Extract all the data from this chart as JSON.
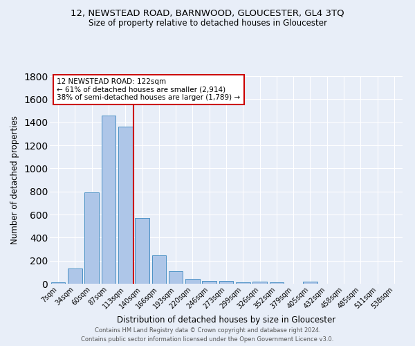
{
  "title": "12, NEWSTEAD ROAD, BARNWOOD, GLOUCESTER, GL4 3TQ",
  "subtitle": "Size of property relative to detached houses in Gloucester",
  "xlabel": "Distribution of detached houses by size in Gloucester",
  "ylabel": "Number of detached properties",
  "categories": [
    "7sqm",
    "34sqm",
    "60sqm",
    "87sqm",
    "113sqm",
    "140sqm",
    "166sqm",
    "193sqm",
    "220sqm",
    "246sqm",
    "273sqm",
    "299sqm",
    "326sqm",
    "352sqm",
    "379sqm",
    "405sqm",
    "432sqm",
    "458sqm",
    "485sqm",
    "511sqm",
    "538sqm"
  ],
  "values": [
    10,
    135,
    790,
    1460,
    1360,
    570,
    248,
    108,
    40,
    27,
    22,
    14,
    18,
    10,
    0,
    20,
    0,
    0,
    0,
    0,
    0
  ],
  "bar_color": "#aec6e8",
  "bar_edge_color": "#4a90c4",
  "background_color": "#e8eef8",
  "grid_color": "#ffffff",
  "red_line_x": 4.5,
  "annotation_text": "12 NEWSTEAD ROAD: 122sqm\n← 61% of detached houses are smaller (2,914)\n38% of semi-detached houses are larger (1,789) →",
  "annotation_box_color": "#ffffff",
  "annotation_box_edge": "#cc0000",
  "red_line_color": "#cc0000",
  "ylim": [
    0,
    1800
  ],
  "yticks": [
    0,
    200,
    400,
    600,
    800,
    1000,
    1200,
    1400,
    1600,
    1800
  ],
  "footer_line1": "Contains HM Land Registry data © Crown copyright and database right 2024.",
  "footer_line2": "Contains public sector information licensed under the Open Government Licence v3.0."
}
